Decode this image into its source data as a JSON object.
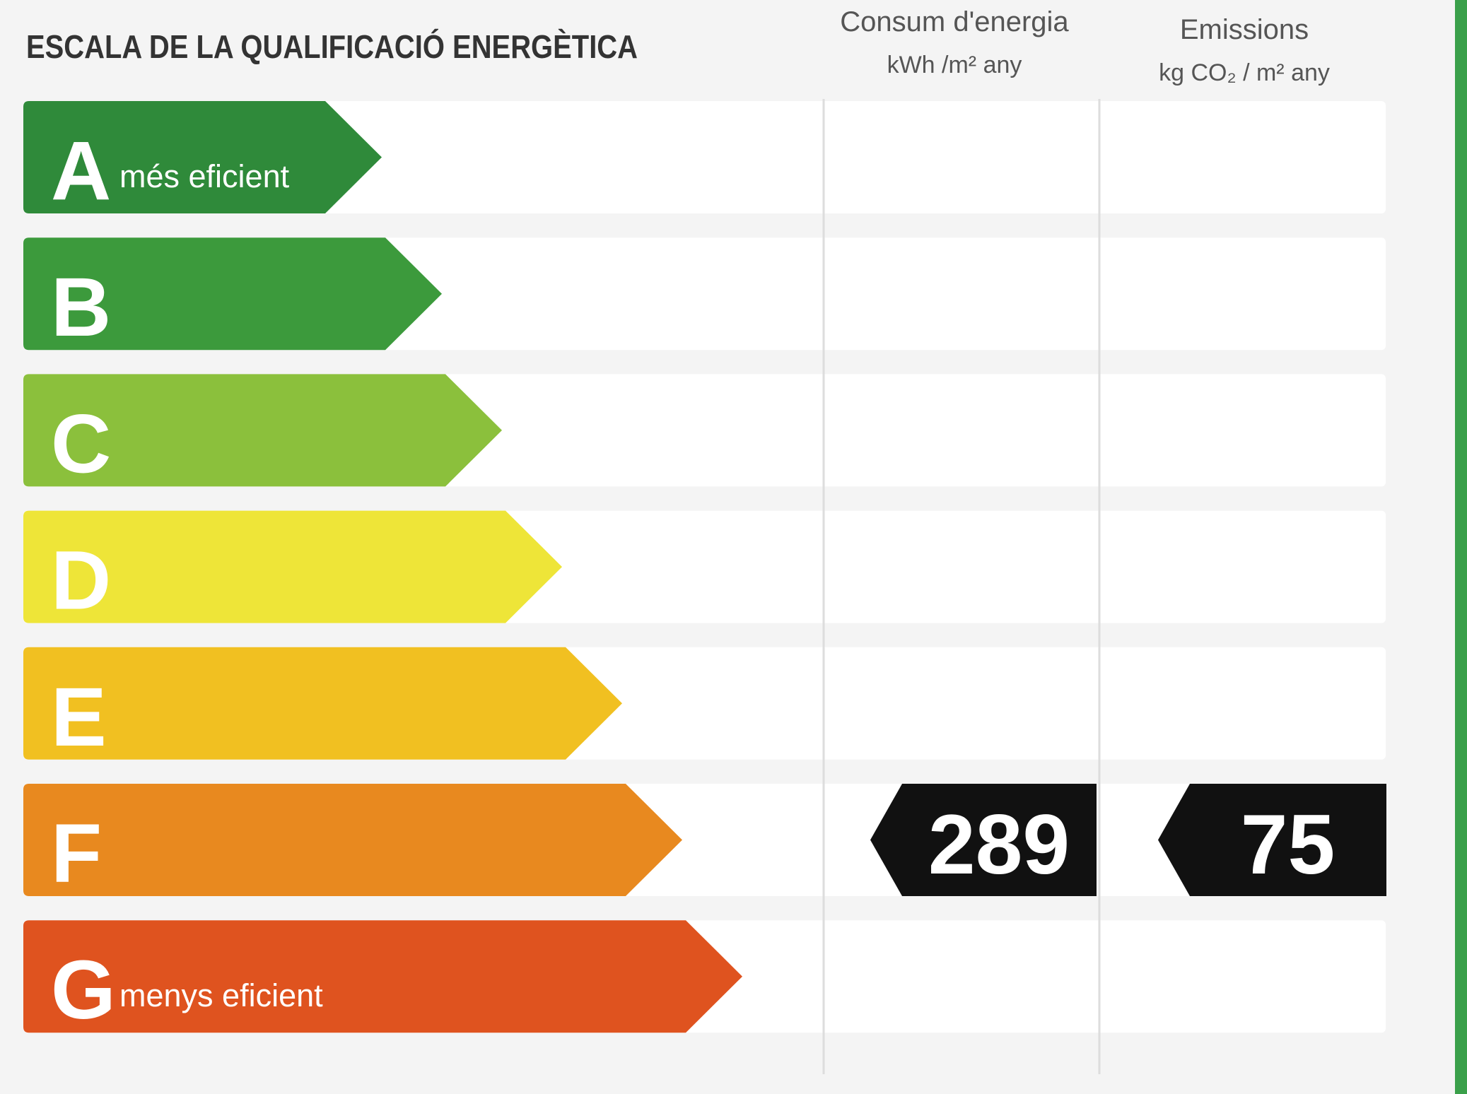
{
  "header": {
    "title": "ESCALA DE LA QUALIFICACIÓ ENERGÈTICA",
    "columns": [
      {
        "title": "Consum d'energia",
        "unit": "kWh /m² any"
      },
      {
        "title": "Emissions",
        "unit": "kg CO₂ / m² any"
      }
    ]
  },
  "scale": [
    {
      "letter": "A",
      "label": "més eficient",
      "color": "#2f8a3a"
    },
    {
      "letter": "B",
      "color": "#3c9a3c"
    },
    {
      "letter": "C",
      "color": "#8bc03c"
    },
    {
      "letter": "D",
      "color": "#eee538"
    },
    {
      "letter": "E",
      "color": "#f1c021"
    },
    {
      "letter": "F",
      "color": "#e8891f"
    },
    {
      "letter": "G",
      "label": "menys eficient",
      "color": "#df531f"
    }
  ],
  "rating": {
    "class": "F",
    "values": [
      289,
      75
    ]
  }
}
